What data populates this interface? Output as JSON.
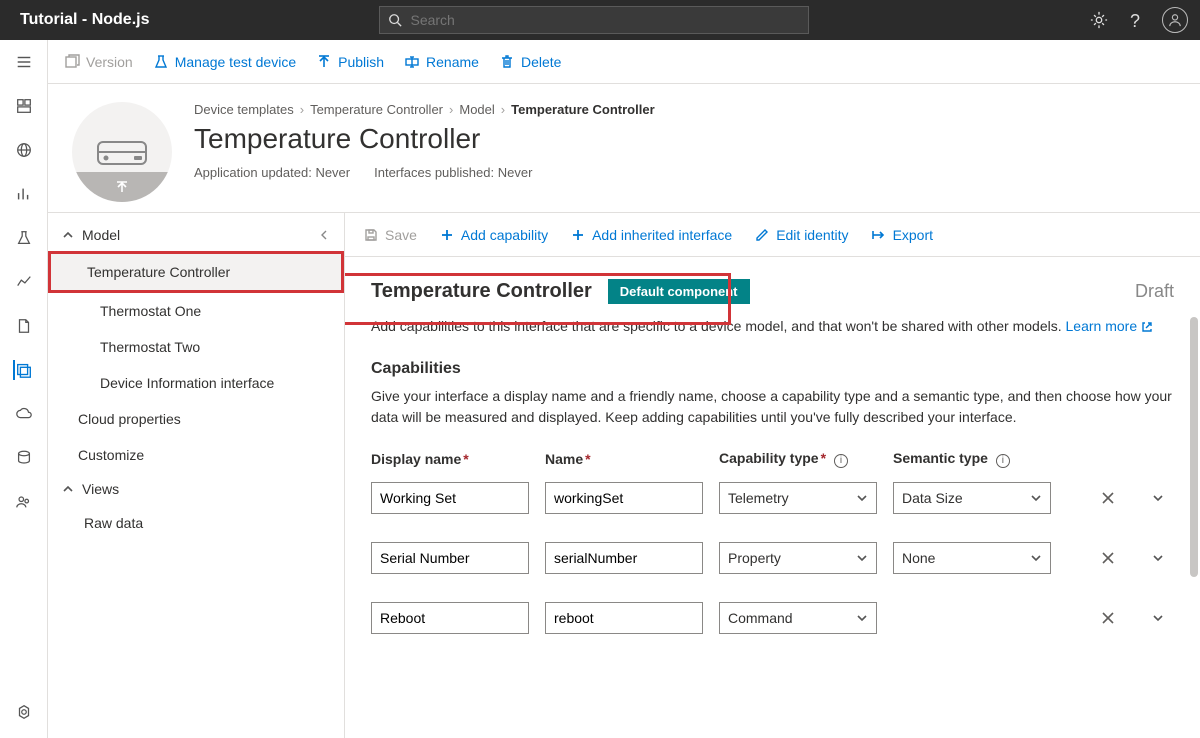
{
  "topbar": {
    "title": "Tutorial - Node.js",
    "search_placeholder": "Search"
  },
  "cmdbar": {
    "version": "Version",
    "manage_test": "Manage test device",
    "publish": "Publish",
    "rename": "Rename",
    "delete": "Delete"
  },
  "breadcrumb": {
    "items": [
      "Device templates",
      "Temperature Controller",
      "Model"
    ],
    "current": "Temperature Controller"
  },
  "page_title": "Temperature Controller",
  "meta": {
    "app_updated_label": "Application updated:",
    "app_updated_value": "Never",
    "if_published_label": "Interfaces published:",
    "if_published_value": "Never"
  },
  "tree": {
    "model": "Model",
    "items": [
      "Temperature Controller",
      "Thermostat One",
      "Thermostat Two",
      "Device Information interface"
    ],
    "cloud": "Cloud properties",
    "customize": "Customize",
    "views": "Views",
    "raw": "Raw data"
  },
  "detail_cmd": {
    "save": "Save",
    "add_cap": "Add capability",
    "add_inh": "Add inherited interface",
    "edit_id": "Edit identity",
    "export": "Export"
  },
  "detail": {
    "title": "Temperature Controller",
    "badge": "Default component",
    "status": "Draft",
    "subtext": "Add capabilities to this interface that are specific to a device model, and that won't be shared with other models.",
    "learn_more": "Learn more",
    "cap_title": "Capabilities",
    "cap_desc": "Give your interface a display name and a friendly name, choose a capability type and a semantic type, and then choose how your data will be measured and displayed. Keep adding capabilities until you've fully described your interface.",
    "headers": {
      "display": "Display name",
      "name": "Name",
      "captype": "Capability type",
      "semtype": "Semantic type"
    },
    "rows": [
      {
        "display": "Working Set",
        "name": "workingSet",
        "cap": "Telemetry",
        "sem": "Data Size",
        "show_sem": true
      },
      {
        "display": "Serial Number",
        "name": "serialNumber",
        "cap": "Property",
        "sem": "None",
        "show_sem": true
      },
      {
        "display": "Reboot",
        "name": "reboot",
        "cap": "Command",
        "sem": "",
        "show_sem": false
      }
    ]
  },
  "colors": {
    "accent": "#0078d4",
    "badge": "#038387",
    "highlight": "#d13438"
  }
}
